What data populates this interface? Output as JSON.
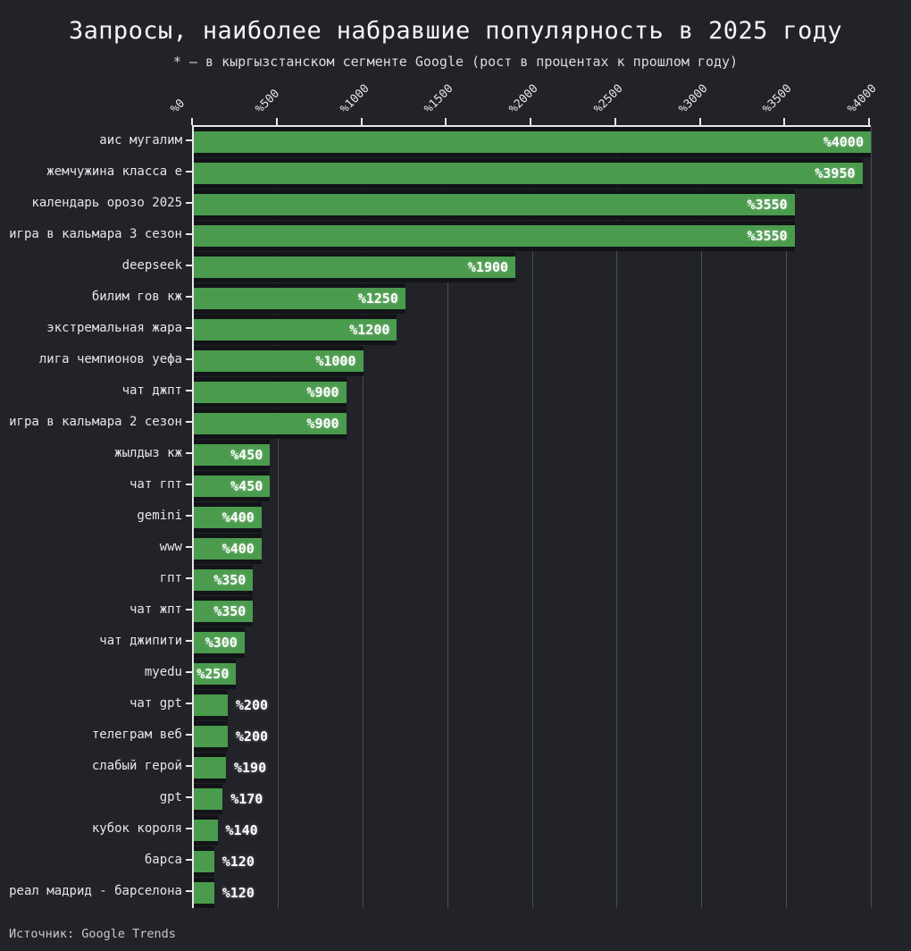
{
  "source_note": "Источник: Google Trends",
  "colors": {
    "background": "#212329",
    "bar": "#4a9b4d",
    "bar_gap": "#121417",
    "grid": "#4a4d52",
    "axis": "#e8e8e8",
    "label_text": "#e6e6e6",
    "value_text": "#ffffff",
    "title_text": "#f5f5f5",
    "subtitle_text": "#dcdcdc",
    "source_text": "#c9c9c9"
  },
  "chart_data": {
    "type": "bar",
    "orientation": "horizontal",
    "title": "Запросы, наиболее набравшие популярность в 2025 году",
    "subtitle": "* — в кыргызстанском сегменте Google (рост в процентах к прошлом году)",
    "xlabel": "",
    "ylabel": "",
    "xlim": [
      0,
      4000
    ],
    "grid": true,
    "legend": null,
    "x_tick_values": [
      0,
      500,
      1000,
      1500,
      2000,
      2500,
      3000,
      3500,
      4000
    ],
    "x_tick_labels": [
      "%0",
      "%500",
      "%1000",
      "%1500",
      "%2000",
      "%2500",
      "%3000",
      "%3500",
      "%4000"
    ],
    "categories": [
      "аис мугалим",
      "жемчужина класса е",
      "календарь орозо 2025",
      "игра в кальмара 3 сезон",
      "deepseek",
      "билим гов кж",
      "экстремальная жара",
      "лига чемпионов уефа",
      "чат джпт",
      "игра в кальмара 2 сезон",
      "жылдыз кж",
      "чат гпт",
      "gemini",
      "www",
      "гпт",
      "чат жпт",
      "чат джипити",
      "myedu",
      "чат gpt",
      "телеграм веб",
      "слабый герой",
      "gpt",
      "кубок короля",
      "барса",
      "реал мадрид - барселона"
    ],
    "values": [
      4000,
      3950,
      3550,
      3550,
      1900,
      1250,
      1200,
      1000,
      900,
      900,
      450,
      450,
      400,
      400,
      350,
      350,
      300,
      250,
      200,
      200,
      190,
      170,
      140,
      120,
      120
    ],
    "bar_labels": [
      "%4000",
      "%3950",
      "%3550",
      "%3550",
      "%1900",
      "%1250",
      "%1200",
      "%1000",
      "%900",
      "%900",
      "%450",
      "%450",
      "%400",
      "%400",
      "%350",
      "%350",
      "%300",
      "%250",
      "%200",
      "%200",
      "%190",
      "%170",
      "%140",
      "%120",
      "%120"
    ],
    "inside_label_min_value": 250
  }
}
